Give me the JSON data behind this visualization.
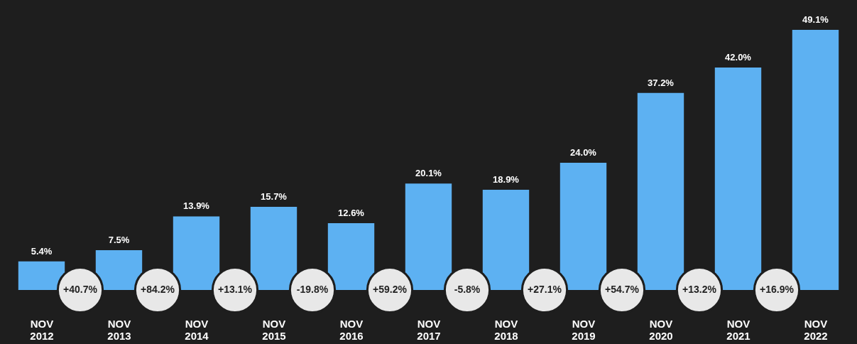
{
  "chart_data": {
    "type": "bar",
    "categories": [
      "NOV 2012",
      "NOV 2013",
      "NOV 2014",
      "NOV 2015",
      "NOV 2016",
      "NOV 2017",
      "NOV 2018",
      "NOV 2019",
      "NOV 2020",
      "NOV 2021",
      "NOV 2022"
    ],
    "values": [
      5.4,
      7.5,
      13.9,
      15.7,
      12.6,
      20.1,
      18.9,
      24.0,
      37.2,
      42.0,
      49.1
    ],
    "value_labels": [
      "5.4%",
      "7.5%",
      "13.9%",
      "15.7%",
      "12.6%",
      "20.1%",
      "18.9%",
      "24.0%",
      "37.2%",
      "42.0%",
      "49.1%"
    ],
    "color": "#5db1f2",
    "annotations": [
      "+40.7%",
      "+84.2%",
      "+13.1%",
      "-19.8%",
      "+59.2%",
      "-5.8%",
      "+27.1%",
      "+54.7%",
      "+13.2%",
      "+16.9%"
    ]
  }
}
